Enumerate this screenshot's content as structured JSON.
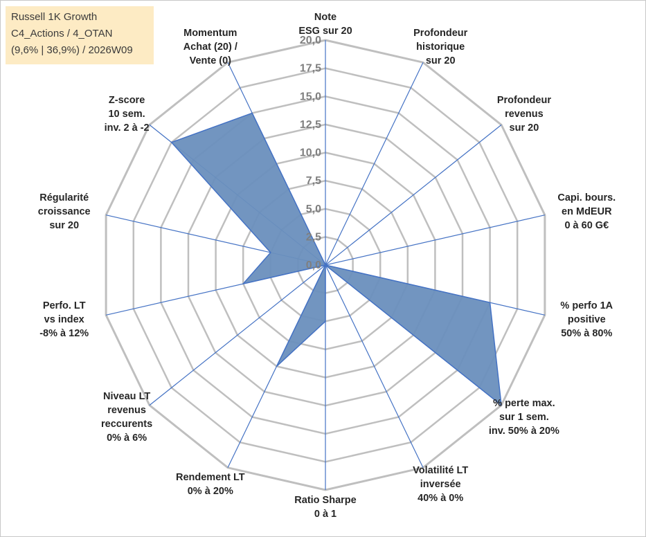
{
  "title_box": {
    "line1": "Russell 1K Growth",
    "line2": "C4_Actions / 4_OTAN",
    "line3": "(9,6% | 36,9%) / 2026W09"
  },
  "chart_data": {
    "type": "radar",
    "axis_min": 0,
    "axis_max": 20,
    "ring_step": 2.5,
    "tick_labels": [
      "0,0",
      "2,5",
      "5,0",
      "7,5",
      "10,0",
      "12,5",
      "15,0",
      "17,5",
      "20,0"
    ],
    "axes": [
      {
        "label": [
          "Note",
          "ESG sur 20"
        ],
        "value": 0
      },
      {
        "label": [
          "Profondeur",
          "historique",
          "sur 20"
        ],
        "value": 0
      },
      {
        "label": [
          "Profondeur",
          "revenus",
          "sur 20"
        ],
        "value": 0
      },
      {
        "label": [
          "Capi. bours.",
          "en MdEUR",
          "0 à 60 G€"
        ],
        "value": 0
      },
      {
        "label": [
          "% perfo 1A",
          "positive",
          "50% à 80%"
        ],
        "value": 15
      },
      {
        "label": [
          "% perte max.",
          "sur 1 sem.",
          "inv. 50% à 20%"
        ],
        "value": 20
      },
      {
        "label": [
          "Volatilité LT",
          "inversée",
          "40% à 0%"
        ],
        "value": 0
      },
      {
        "label": [
          "Ratio Sharpe",
          "0 à 1"
        ],
        "value": 5
      },
      {
        "label": [
          "Rendement LT",
          "0% à 20%"
        ],
        "value": 10
      },
      {
        "label": [
          "Niveau LT",
          "revenus",
          "reccurents",
          "0% à 6%"
        ],
        "value": 0
      },
      {
        "label": [
          "Perfo. LT",
          "vs index",
          "-8% à 12%"
        ],
        "value": 7.5
      },
      {
        "label": [
          "Régularité",
          "croissance",
          "sur 20"
        ],
        "value": 5
      },
      {
        "label": [
          "Z-score",
          "10 sem.",
          "inv. 2 à -2"
        ],
        "value": 17.5
      },
      {
        "label": [
          "Momentum",
          "Achat (20) /",
          "Vente (0)"
        ],
        "value": 15
      }
    ],
    "colors": {
      "fill": "#6a8fbd",
      "stroke": "#4472c4",
      "grid": "#bfbfbf",
      "spoke": "#4472c4",
      "text": "#262626",
      "legend_bg": "#fdebc4"
    },
    "grid": true,
    "legend": "none"
  }
}
